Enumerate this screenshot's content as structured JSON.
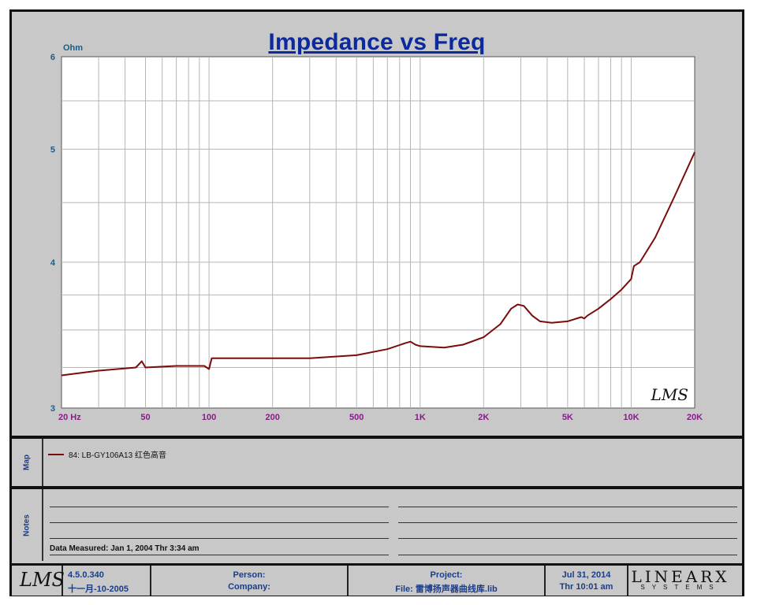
{
  "chart_data": {
    "type": "line",
    "title": "Impedance vs Freq",
    "ylabel": "Ohm",
    "x_scale": "log",
    "y_scale": "log",
    "xlim": [
      20,
      20000
    ],
    "ylim": [
      3,
      6
    ],
    "x_ticks": [
      {
        "value": 20,
        "label": "20  Hz"
      },
      {
        "value": 50,
        "label": "50"
      },
      {
        "value": 100,
        "label": "100"
      },
      {
        "value": 200,
        "label": "200"
      },
      {
        "value": 500,
        "label": "500"
      },
      {
        "value": 1000,
        "label": "1K"
      },
      {
        "value": 2000,
        "label": "2K"
      },
      {
        "value": 5000,
        "label": "5K"
      },
      {
        "value": 10000,
        "label": "10K"
      },
      {
        "value": 20000,
        "label": "20K"
      }
    ],
    "y_ticks": [
      {
        "value": 3,
        "label": "3"
      },
      {
        "value": 4,
        "label": "4"
      },
      {
        "value": 5,
        "label": "5"
      },
      {
        "value": 6,
        "label": "6"
      }
    ],
    "grid": true,
    "series": [
      {
        "name": "84: LB-GY106A13 红色高音",
        "color": "#7a0c0c",
        "points": [
          [
            20,
            3.2
          ],
          [
            30,
            3.23
          ],
          [
            45,
            3.25
          ],
          [
            48,
            3.29
          ],
          [
            50,
            3.25
          ],
          [
            70,
            3.26
          ],
          [
            95,
            3.26
          ],
          [
            100,
            3.24
          ],
          [
            103,
            3.31
          ],
          [
            150,
            3.31
          ],
          [
            300,
            3.31
          ],
          [
            500,
            3.33
          ],
          [
            700,
            3.37
          ],
          [
            850,
            3.41
          ],
          [
            900,
            3.42
          ],
          [
            950,
            3.4
          ],
          [
            1000,
            3.39
          ],
          [
            1300,
            3.38
          ],
          [
            1600,
            3.4
          ],
          [
            2000,
            3.45
          ],
          [
            2400,
            3.54
          ],
          [
            2700,
            3.65
          ],
          [
            2900,
            3.68
          ],
          [
            3100,
            3.67
          ],
          [
            3400,
            3.6
          ],
          [
            3700,
            3.56
          ],
          [
            4200,
            3.55
          ],
          [
            5000,
            3.56
          ],
          [
            5800,
            3.59
          ],
          [
            6000,
            3.58
          ],
          [
            6200,
            3.6
          ],
          [
            7000,
            3.65
          ],
          [
            8000,
            3.72
          ],
          [
            9000,
            3.79
          ],
          [
            10000,
            3.87
          ],
          [
            10300,
            3.97
          ],
          [
            11000,
            4.0
          ],
          [
            13000,
            4.2
          ],
          [
            16000,
            4.55
          ],
          [
            20000,
            4.97
          ]
        ]
      }
    ]
  },
  "map": {
    "label": "Map",
    "entry": "84: LB-GY106A13 红色高音"
  },
  "notes": {
    "label": "Notes",
    "measured": "Data Measured: Jan  1, 2004  Thr  3:34 am"
  },
  "footer": {
    "logo": "LMS",
    "version": "4.5.0.340",
    "version_date": "十一月-10-2005",
    "person": "Person:",
    "company": "Company:",
    "project": "Project:",
    "file": "File: 雷博扬声器曲线库.lib",
    "date": "Jul 31, 2014",
    "time": "Thr 10:01 am",
    "brand": "LINEARX",
    "brand_sub": "SYSTEMS"
  },
  "watermark": "LMS"
}
